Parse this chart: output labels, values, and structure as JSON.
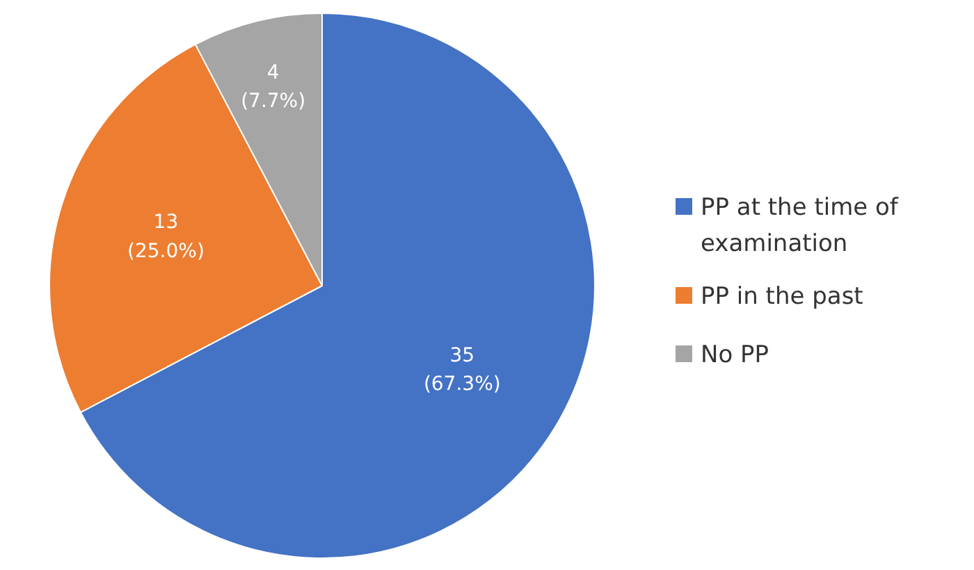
{
  "chart_data": {
    "type": "pie",
    "categories": [
      "PP at the time of examination",
      "PP in the past",
      "No PP"
    ],
    "values": [
      35,
      13,
      4
    ],
    "colors": [
      "#4472c4",
      "#ed7d31",
      "#a5a5a5"
    ],
    "value_labels": [
      "35\n(67.3%)",
      "13\n(25.0%)",
      "4\n(7.7%)"
    ],
    "legend": "right"
  }
}
